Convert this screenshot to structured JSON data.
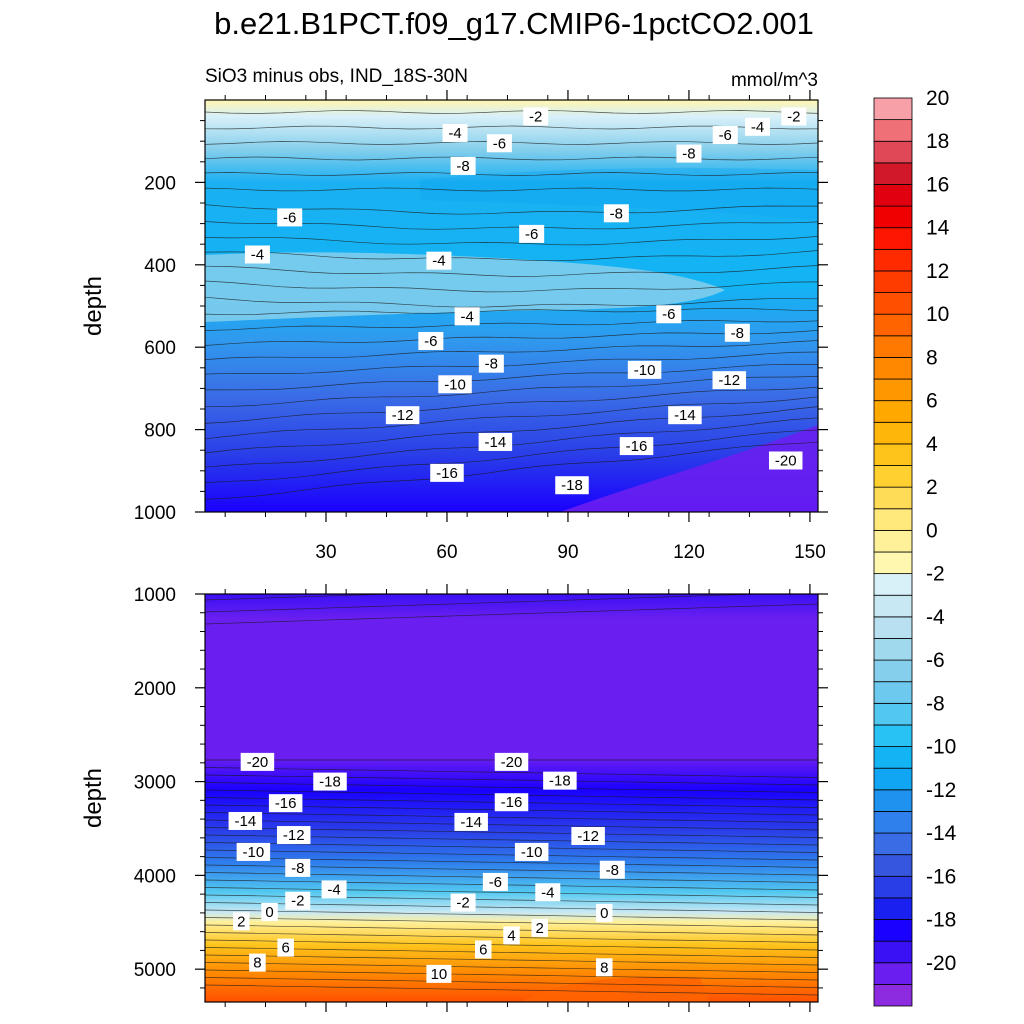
{
  "title": "b.e21.B1PCT.f09_g17.CMIP6-1pctCO2.001",
  "subtitle_left": "SiO3 minus obs, IND_18S-30N",
  "subtitle_right": "mmol/m^3",
  "colors": {
    "levels": [
      -21,
      -20,
      -19,
      -18,
      -17,
      -16,
      -15,
      -14,
      -13,
      -12,
      -11,
      -10,
      -9,
      -8,
      -7,
      -6,
      -5,
      -4,
      -3,
      -2,
      -1,
      0,
      1,
      2,
      3,
      4,
      5,
      6,
      7,
      8,
      9,
      10,
      11,
      12,
      13,
      14,
      15,
      16,
      17,
      18,
      19,
      20,
      21
    ],
    "fills": [
      "#8c2be0",
      "#6a1ff0",
      "#3a10f5",
      "#1a00ff",
      "#1a20f0",
      "#2a3ee8",
      "#3656e0",
      "#3a6ce6",
      "#2f80ec",
      "#1f92f0",
      "#10a6f4",
      "#12b4f4",
      "#28c2f4",
      "#52c8f0",
      "#6dcaee",
      "#86cfec",
      "#a0d8ee",
      "#b8e0f0",
      "#c8e8f4",
      "#d8f0f8",
      "#fff6b0",
      "#fff09a",
      "#ffe87c",
      "#ffdc58",
      "#ffd030",
      "#ffc41c",
      "#ffb60a",
      "#ffa800",
      "#ff9800",
      "#ff8800",
      "#ff7800",
      "#ff6400",
      "#ff5000",
      "#ff3c00",
      "#ff2a00",
      "#ff1600",
      "#f00000",
      "#e00010",
      "#d01828",
      "#e04858",
      "#f07078",
      "#f8a0a8"
    ]
  },
  "chart_data": [
    {
      "type": "heatmap",
      "panel": "upper",
      "xlabel": "",
      "ylabel": "depth",
      "xlim": [
        0,
        152
      ],
      "ylim": [
        1000,
        0
      ],
      "x_ticks": [
        "30",
        "60",
        "90",
        "120",
        "150"
      ],
      "y_ticks": [
        "200",
        "400",
        "600",
        "800",
        "1000"
      ],
      "contour_labels": [
        {
          "text": "-2",
          "x": 82,
          "depth": 40
        },
        {
          "text": "-2",
          "x": 146,
          "depth": 40
        },
        {
          "text": "-4",
          "x": 62,
          "depth": 80
        },
        {
          "text": "-4",
          "x": 137,
          "depth": 65
        },
        {
          "text": "-6",
          "x": 73,
          "depth": 105
        },
        {
          "text": "-6",
          "x": 129,
          "depth": 85
        },
        {
          "text": "-8",
          "x": 64,
          "depth": 160
        },
        {
          "text": "-8",
          "x": 120,
          "depth": 130
        },
        {
          "text": "-8",
          "x": 102,
          "depth": 275
        },
        {
          "text": "-6",
          "x": 21,
          "depth": 285
        },
        {
          "text": "-6",
          "x": 81,
          "depth": 325
        },
        {
          "text": "-4",
          "x": 13,
          "depth": 375
        },
        {
          "text": "-4",
          "x": 58,
          "depth": 390
        },
        {
          "text": "-4",
          "x": 65,
          "depth": 525
        },
        {
          "text": "-6",
          "x": 115,
          "depth": 520
        },
        {
          "text": "-6",
          "x": 56,
          "depth": 585
        },
        {
          "text": "-8",
          "x": 132,
          "depth": 565
        },
        {
          "text": "-8",
          "x": 71,
          "depth": 640
        },
        {
          "text": "-10",
          "x": 109,
          "depth": 655
        },
        {
          "text": "-12",
          "x": 130,
          "depth": 680
        },
        {
          "text": "-10",
          "x": 62,
          "depth": 690
        },
        {
          "text": "-12",
          "x": 49,
          "depth": 765
        },
        {
          "text": "-14",
          "x": 119,
          "depth": 765
        },
        {
          "text": "-14",
          "x": 72,
          "depth": 830
        },
        {
          "text": "-16",
          "x": 107,
          "depth": 840
        },
        {
          "text": "-16",
          "x": 60,
          "depth": 905
        },
        {
          "text": "-18",
          "x": 91,
          "depth": 935
        },
        {
          "text": "-20",
          "x": 144,
          "depth": 875
        }
      ]
    },
    {
      "type": "heatmap",
      "panel": "lower",
      "xlabel": "",
      "ylabel": "depth",
      "xlim": [
        0,
        152
      ],
      "ylim": [
        5350,
        1000
      ],
      "y_ticks": [
        "1000",
        "2000",
        "3000",
        "4000",
        "5000"
      ],
      "contour_labels": [
        {
          "text": "-20",
          "x": 13,
          "depth": 2790
        },
        {
          "text": "-20",
          "x": 76,
          "depth": 2790
        },
        {
          "text": "-18",
          "x": 31,
          "depth": 3000
        },
        {
          "text": "-18",
          "x": 88,
          "depth": 2990
        },
        {
          "text": "-16",
          "x": 20,
          "depth": 3230
        },
        {
          "text": "-16",
          "x": 76,
          "depth": 3220
        },
        {
          "text": "-14",
          "x": 10,
          "depth": 3420
        },
        {
          "text": "-14",
          "x": 66,
          "depth": 3430
        },
        {
          "text": "-12",
          "x": 22,
          "depth": 3570
        },
        {
          "text": "-12",
          "x": 95,
          "depth": 3580
        },
        {
          "text": "-10",
          "x": 12,
          "depth": 3750
        },
        {
          "text": "-10",
          "x": 81,
          "depth": 3750
        },
        {
          "text": "-8",
          "x": 23,
          "depth": 3920
        },
        {
          "text": "-8",
          "x": 101,
          "depth": 3940
        },
        {
          "text": "-6",
          "x": 72,
          "depth": 4070
        },
        {
          "text": "-4",
          "x": 32,
          "depth": 4150
        },
        {
          "text": "-4",
          "x": 85,
          "depth": 4180
        },
        {
          "text": "-2",
          "x": 23,
          "depth": 4270
        },
        {
          "text": "-2",
          "x": 64,
          "depth": 4290
        },
        {
          "text": "0",
          "x": 16,
          "depth": 4390
        },
        {
          "text": "0",
          "x": 99,
          "depth": 4400
        },
        {
          "text": "2",
          "x": 9,
          "depth": 4490
        },
        {
          "text": "2",
          "x": 83,
          "depth": 4560
        },
        {
          "text": "4",
          "x": 76,
          "depth": 4640
        },
        {
          "text": "6",
          "x": 20,
          "depth": 4770
        },
        {
          "text": "6",
          "x": 69,
          "depth": 4790
        },
        {
          "text": "8",
          "x": 13,
          "depth": 4930
        },
        {
          "text": "8",
          "x": 99,
          "depth": 4980
        },
        {
          "text": "10",
          "x": 58,
          "depth": 5050
        }
      ]
    },
    {
      "type": "colorbar",
      "tick_labels": [
        "20",
        "18",
        "16",
        "14",
        "12",
        "10",
        "8",
        "6",
        "4",
        "2",
        "0",
        "-2",
        "-4",
        "-6",
        "-8",
        "-10",
        "-12",
        "-14",
        "-16",
        "-18",
        "-20"
      ]
    }
  ]
}
